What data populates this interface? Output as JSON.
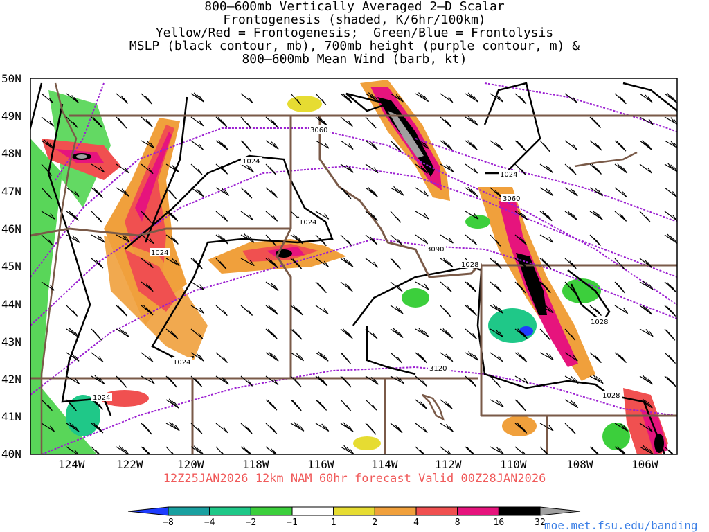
{
  "title_lines": [
    "800–600mb Vertically Averaged 2–D Scalar",
    "Frontogenesis (shaded, K/6hr/100km)",
    "Yellow/Red = Frontogenesis;  Green/Blue = Frontolysis",
    "MSLP (black contour, mb), 700mb height (purple contour, m) &",
    "800–600mb Mean Wind (barb, kt)"
  ],
  "lat_labels": [
    "50N",
    "49N",
    "48N",
    "47N",
    "46N",
    "45N",
    "44N",
    "43N",
    "42N",
    "41N",
    "40N"
  ],
  "lon_labels": [
    "124W",
    "122W",
    "120W",
    "118W",
    "116W",
    "114W",
    "112W",
    "110W",
    "108W",
    "106W"
  ],
  "mslp_labels": [
    "1024",
    "1024",
    "1024",
    "1024",
    "1024",
    "1024",
    "1028",
    "1028",
    "1028"
  ],
  "height_labels": [
    "3060",
    "3060",
    "3090",
    "3120"
  ],
  "forecast_text": "12Z25JAN2026 12km NAM 60hr forecast Valid 00Z28JAN2026",
  "colorbar": {
    "labels": [
      "−8",
      "−4",
      "−2",
      "−1",
      "1",
      "2",
      "4",
      "8",
      "16",
      "32"
    ],
    "colors": [
      "#1e3cff",
      "#19a0a0",
      "#1fc888",
      "#3ccf3c",
      "#ffffff",
      "#e6dc32",
      "#f0a03c",
      "#f05050",
      "#e6147d",
      "#000000",
      "#a0a0a0"
    ]
  },
  "shading_colors": {
    "frontolysis_green": "#3ccf3c",
    "frontolysis_teal": "#1fc888",
    "frontogenesis_yellow": "#e6dc32",
    "frontogenesis_orange": "#f0a03c",
    "frontogenesis_red": "#f05050",
    "frontogenesis_magenta": "#e6147d",
    "frontogenesis_black": "#000000",
    "frontogenesis_gray": "#a0a0a0",
    "mslp_contour": "#000000",
    "height_contour": "#9b1fd1",
    "state_border": "#7a5a48"
  },
  "credit": "moe.met.fsu.edu/banding"
}
